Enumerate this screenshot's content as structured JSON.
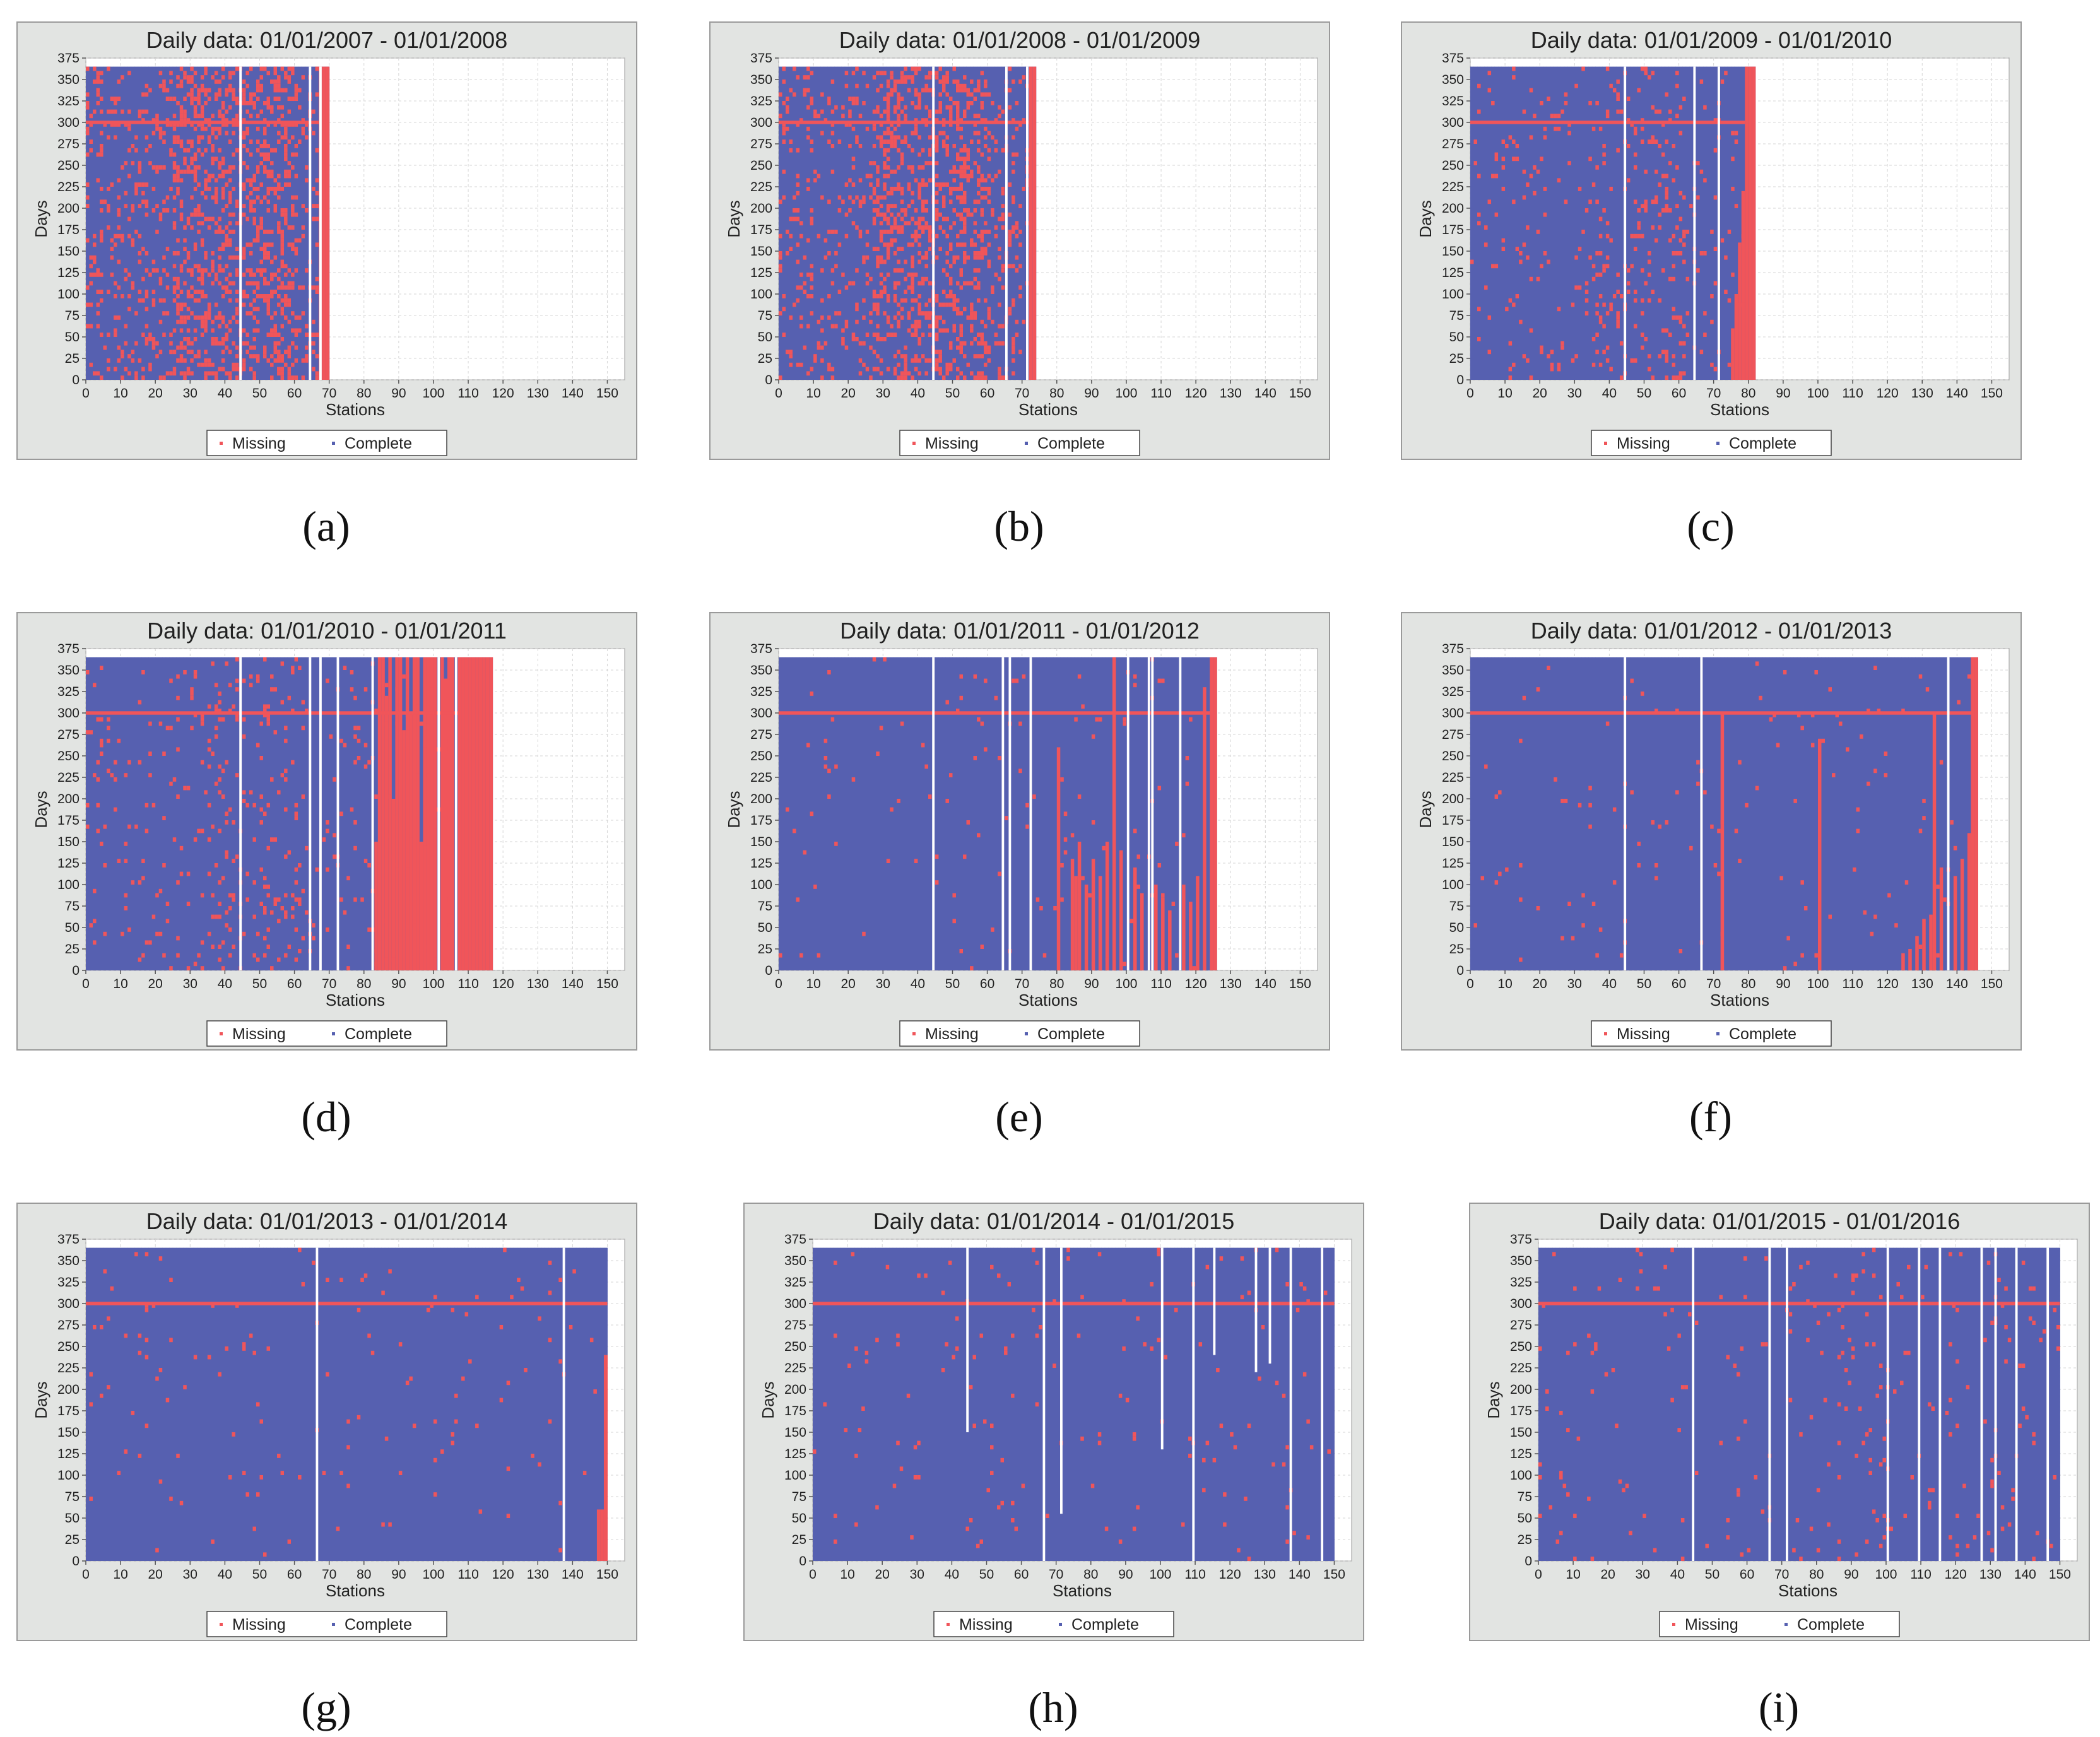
{
  "colors": {
    "missing": "#f0555a",
    "complete": "#5660b0",
    "frame": "#e2e4e2",
    "plot_bg": "#ffffff",
    "grid": "#d6d6d6",
    "gap": "#ffffff"
  },
  "legend": {
    "missing": "Missing",
    "complete": "Complete"
  },
  "chart_data": [
    {
      "type": "heatmap",
      "id": "a",
      "caption": "(a)",
      "title": "Daily data:  01/01/2007 -  01/01/2008",
      "xlabel": "Stations",
      "ylabel": "Days",
      "xlim": [
        0,
        155
      ],
      "ylim": [
        0,
        375
      ],
      "xticks": [
        0,
        10,
        20,
        30,
        40,
        50,
        60,
        70,
        80,
        90,
        100,
        110,
        120,
        130,
        140,
        150
      ],
      "yticks": [
        0,
        25,
        50,
        75,
        100,
        125,
        150,
        175,
        200,
        225,
        250,
        275,
        300,
        325,
        350,
        375
      ],
      "stations": 70,
      "days": 365,
      "gaps": [
        44,
        64,
        67
      ],
      "missing_row_day": 300,
      "missing_density": 0.3,
      "full_missing_from": 67,
      "dense_station_ranges": [
        [
          25,
          60
        ]
      ],
      "partial_columns": []
    },
    {
      "type": "heatmap",
      "id": "b",
      "caption": "(b)",
      "title": "Daily data:  01/01/2008 -  01/01/2009",
      "xlabel": "Stations",
      "ylabel": "Days",
      "xlim": [
        0,
        155
      ],
      "ylim": [
        0,
        375
      ],
      "xticks": [
        0,
        10,
        20,
        30,
        40,
        50,
        60,
        70,
        80,
        90,
        100,
        110,
        120,
        130,
        140,
        150
      ],
      "yticks": [
        0,
        25,
        50,
        75,
        100,
        125,
        150,
        175,
        200,
        225,
        250,
        275,
        300,
        325,
        350,
        375
      ],
      "stations": 74,
      "days": 365,
      "gaps": [
        44,
        65,
        71
      ],
      "missing_row_day": 300,
      "missing_density": 0.28,
      "full_missing_from": 72,
      "dense_station_ranges": [
        [
          27,
          60
        ]
      ],
      "partial_columns": []
    },
    {
      "type": "heatmap",
      "id": "c",
      "caption": "(c)",
      "title": "Daily data:  01/01/2009 -  01/01/2010",
      "xlabel": "Stations",
      "ylabel": "Days",
      "xlim": [
        0,
        155
      ],
      "ylim": [
        0,
        375
      ],
      "xticks": [
        0,
        10,
        20,
        30,
        40,
        50,
        60,
        70,
        80,
        90,
        100,
        110,
        120,
        130,
        140,
        150
      ],
      "yticks": [
        0,
        25,
        50,
        75,
        100,
        125,
        150,
        175,
        200,
        225,
        250,
        275,
        300,
        325,
        350,
        375
      ],
      "stations": 82,
      "days": 365,
      "gaps": [
        44,
        64,
        71
      ],
      "missing_row_day": 300,
      "missing_density": 0.1,
      "full_missing_from": 79,
      "dense_station_ranges": [
        [
          35,
          62
        ]
      ],
      "partial_columns": [
        [
          75,
          60
        ],
        [
          76,
          100
        ],
        [
          77,
          160
        ],
        [
          78,
          220
        ]
      ]
    },
    {
      "type": "heatmap",
      "id": "d",
      "caption": "(d)",
      "title": "Daily data:  01/01/2010 -  01/01/2011",
      "xlabel": "Stations",
      "ylabel": "Days",
      "xlim": [
        0,
        155
      ],
      "ylim": [
        0,
        375
      ],
      "xticks": [
        0,
        10,
        20,
        30,
        40,
        50,
        60,
        70,
        80,
        90,
        100,
        110,
        120,
        130,
        140,
        150
      ],
      "yticks": [
        0,
        25,
        50,
        75,
        100,
        125,
        150,
        175,
        200,
        225,
        250,
        275,
        300,
        325,
        350,
        375
      ],
      "stations": 117,
      "days": 365,
      "gaps": [
        44,
        64,
        67,
        72,
        82,
        101,
        106
      ],
      "missing_row_day": 300,
      "missing_density": 0.08,
      "full_missing_from": 107,
      "dense_station_ranges": [
        [
          33,
          45
        ],
        [
          50,
          62
        ]
      ],
      "partial_columns": [
        [
          83,
          150
        ],
        [
          84,
          365
        ],
        [
          85,
          365
        ],
        [
          86,
          320
        ],
        [
          87,
          365
        ],
        [
          88,
          200
        ],
        [
          89,
          365
        ],
        [
          90,
          365
        ],
        [
          91,
          280
        ],
        [
          92,
          365
        ],
        [
          93,
          300
        ],
        [
          94,
          365
        ],
        [
          95,
          365
        ],
        [
          96,
          150
        ],
        [
          97,
          365
        ],
        [
          98,
          365
        ],
        [
          99,
          365
        ],
        [
          100,
          365
        ],
        [
          102,
          365
        ],
        [
          103,
          340
        ],
        [
          104,
          365
        ],
        [
          105,
          365
        ]
      ]
    },
    {
      "type": "heatmap",
      "id": "e",
      "caption": "(e)",
      "title": "Daily data:  01/01/2011 -  01/01/2012",
      "xlabel": "Stations",
      "ylabel": "Days",
      "xlim": [
        0,
        155
      ],
      "ylim": [
        0,
        375
      ],
      "xticks": [
        0,
        10,
        20,
        30,
        40,
        50,
        60,
        70,
        80,
        90,
        100,
        110,
        120,
        130,
        140,
        150
      ],
      "yticks": [
        0,
        25,
        50,
        75,
        100,
        125,
        150,
        175,
        200,
        225,
        250,
        275,
        300,
        325,
        350,
        375
      ],
      "stations": 126,
      "days": 365,
      "gaps": [
        44,
        64,
        66,
        72,
        100,
        106,
        107,
        115
      ],
      "missing_row_day": 300,
      "missing_density": 0.03,
      "full_missing_from": 124,
      "dense_station_ranges": [],
      "partial_columns": [
        [
          80,
          260
        ],
        [
          84,
          130
        ],
        [
          85,
          110
        ],
        [
          86,
          150
        ],
        [
          88,
          100
        ],
        [
          90,
          130
        ],
        [
          92,
          110
        ],
        [
          94,
          150
        ],
        [
          96,
          365
        ],
        [
          98,
          140
        ],
        [
          102,
          120
        ],
        [
          104,
          90
        ],
        [
          108,
          100
        ],
        [
          110,
          85
        ],
        [
          112,
          70
        ],
        [
          116,
          100
        ],
        [
          118,
          80
        ],
        [
          120,
          110
        ],
        [
          122,
          330
        ]
      ]
    },
    {
      "type": "heatmap",
      "id": "f",
      "caption": "(f)",
      "title": "Daily data:  01/01/2012 -  01/01/2013",
      "xlabel": "Stations",
      "ylabel": "Days",
      "xlim": [
        0,
        155
      ],
      "ylim": [
        0,
        375
      ],
      "xticks": [
        0,
        10,
        20,
        30,
        40,
        50,
        60,
        70,
        80,
        90,
        100,
        110,
        120,
        130,
        140,
        150
      ],
      "yticks": [
        0,
        25,
        50,
        75,
        100,
        125,
        150,
        175,
        200,
        225,
        250,
        275,
        300,
        325,
        350,
        375
      ],
      "stations": 146,
      "days": 365,
      "gaps": [
        44,
        66,
        137
      ],
      "missing_row_day": 300,
      "missing_density": 0.025,
      "full_missing_from": 144,
      "dense_station_ranges": [],
      "partial_columns": [
        [
          72,
          300
        ],
        [
          100,
          270
        ],
        [
          124,
          20
        ],
        [
          126,
          25
        ],
        [
          128,
          40
        ],
        [
          130,
          60
        ],
        [
          132,
          65
        ],
        [
          133,
          300
        ],
        [
          135,
          120
        ],
        [
          139,
          110
        ],
        [
          141,
          130
        ],
        [
          143,
          160
        ]
      ]
    },
    {
      "type": "heatmap",
      "id": "g",
      "caption": "(g)",
      "title": "Daily data:  01/01/2013 -  01/01/2014",
      "xlabel": "Stations",
      "ylabel": "Days",
      "xlim": [
        0,
        155
      ],
      "ylim": [
        0,
        375
      ],
      "xticks": [
        0,
        10,
        20,
        30,
        40,
        50,
        60,
        70,
        80,
        90,
        100,
        110,
        120,
        130,
        140,
        150
      ],
      "yticks": [
        0,
        25,
        50,
        75,
        100,
        125,
        150,
        175,
        200,
        225,
        250,
        275,
        300,
        325,
        350,
        375
      ],
      "stations": 150,
      "days": 365,
      "gaps": [
        66,
        137
      ],
      "missing_row_day": 300,
      "missing_density": 0.025,
      "full_missing_from": 151,
      "dense_station_ranges": [],
      "partial_columns": [
        [
          147,
          60
        ],
        [
          148,
          60
        ],
        [
          149,
          240
        ]
      ]
    },
    {
      "type": "heatmap",
      "id": "h",
      "caption": "(h)",
      "title": "Daily data:  01/01/2014 -  01/01/2015",
      "xlabel": "Stations",
      "ylabel": "Days",
      "xlim": [
        0,
        155
      ],
      "ylim": [
        0,
        375
      ],
      "xticks": [
        0,
        10,
        20,
        30,
        40,
        50,
        60,
        70,
        80,
        90,
        100,
        110,
        120,
        130,
        140,
        150
      ],
      "yticks": [
        0,
        25,
        50,
        75,
        100,
        125,
        150,
        175,
        200,
        225,
        250,
        275,
        300,
        325,
        350,
        375
      ],
      "stations": 150,
      "days": 365,
      "gaps": [
        44,
        66,
        71,
        100,
        109,
        115,
        127,
        131,
        137,
        146
      ],
      "gap_bottoms": [
        150,
        0,
        55,
        130,
        0,
        240,
        220,
        230,
        0,
        0
      ],
      "missing_row_day": 300,
      "missing_density": 0.03,
      "full_missing_from": 151,
      "dense_station_ranges": [],
      "partial_columns": []
    },
    {
      "type": "heatmap",
      "id": "i",
      "caption": "(i)",
      "title": "Daily data:  01/01/2015 -  01/01/2016",
      "xlabel": "Stations",
      "ylabel": "Days",
      "xlim": [
        0,
        155
      ],
      "ylim": [
        0,
        375
      ],
      "xticks": [
        0,
        10,
        20,
        30,
        40,
        50,
        60,
        70,
        80,
        90,
        100,
        110,
        120,
        130,
        140,
        150
      ],
      "yticks": [
        0,
        25,
        50,
        75,
        100,
        125,
        150,
        175,
        200,
        225,
        250,
        275,
        300,
        325,
        350,
        375
      ],
      "stations": 150,
      "days": 365,
      "gaps": [
        44,
        66,
        71,
        100,
        109,
        115,
        127,
        131,
        137,
        146
      ],
      "missing_row_day": 300,
      "missing_density": 0.035,
      "full_missing_from": 151,
      "dense_station_ranges": [
        [
          85,
          100
        ],
        [
          130,
          142
        ]
      ],
      "partial_columns": []
    }
  ]
}
